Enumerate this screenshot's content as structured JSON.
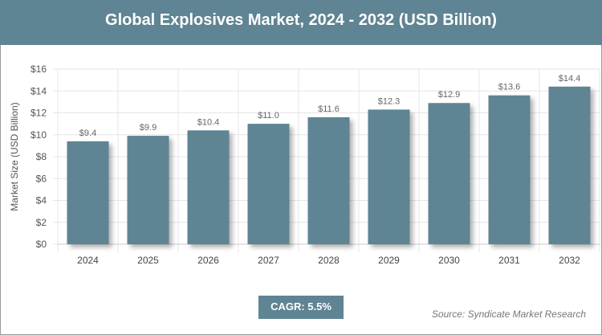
{
  "chart_data": {
    "type": "bar",
    "title": "Global Explosives Market, 2024 - 2032 (USD Billion)",
    "xlabel": "",
    "ylabel": "Market Size (USD Billion)",
    "categories": [
      "2024",
      "2025",
      "2026",
      "2027",
      "2028",
      "2029",
      "2030",
      "2031",
      "2032"
    ],
    "values": [
      9.4,
      9.9,
      10.4,
      11.0,
      11.6,
      12.3,
      12.9,
      13.6,
      14.4
    ],
    "data_labels": [
      "$9.4",
      "$9.9",
      "$10.4",
      "$11.0",
      "$11.6",
      "$12.3",
      "$12.9",
      "$13.6",
      "$14.4"
    ],
    "ylim": [
      0,
      16
    ],
    "yticks": [
      "$0",
      "$2",
      "$4",
      "$6",
      "$8",
      "$10",
      "$12",
      "$14",
      "$16"
    ],
    "grid": true,
    "colors": {
      "bar": "#5f8494",
      "header": "#5f8494"
    }
  },
  "cagr": "CAGR: 5.5%",
  "source": "Source: Syndicate Market Research"
}
